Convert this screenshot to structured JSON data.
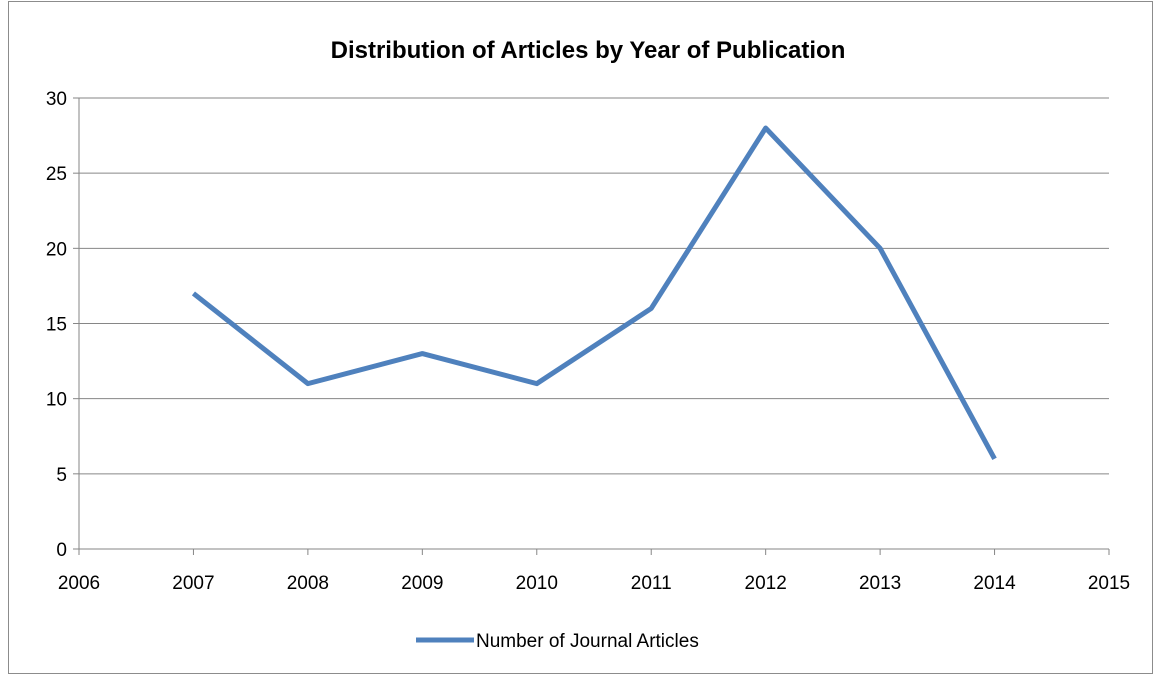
{
  "chart_data": {
    "type": "line",
    "title": "Distribution of Articles by Year of Publication",
    "xlabel": "",
    "ylabel": "",
    "xlim": [
      2006,
      2015
    ],
    "ylim": [
      0,
      30
    ],
    "x_ticks": [
      2006,
      2007,
      2008,
      2009,
      2010,
      2011,
      2012,
      2013,
      2014,
      2015
    ],
    "y_ticks": [
      0,
      5,
      10,
      15,
      20,
      25,
      30
    ],
    "grid": "horizontal",
    "legend": "bottom",
    "series": [
      {
        "name": "Number of Journal Articles",
        "color": "#4f81bd",
        "x": [
          2007,
          2008,
          2009,
          2010,
          2011,
          2012,
          2013,
          2014
        ],
        "y": [
          17,
          11,
          13,
          11,
          16,
          28,
          20,
          6
        ]
      }
    ]
  }
}
